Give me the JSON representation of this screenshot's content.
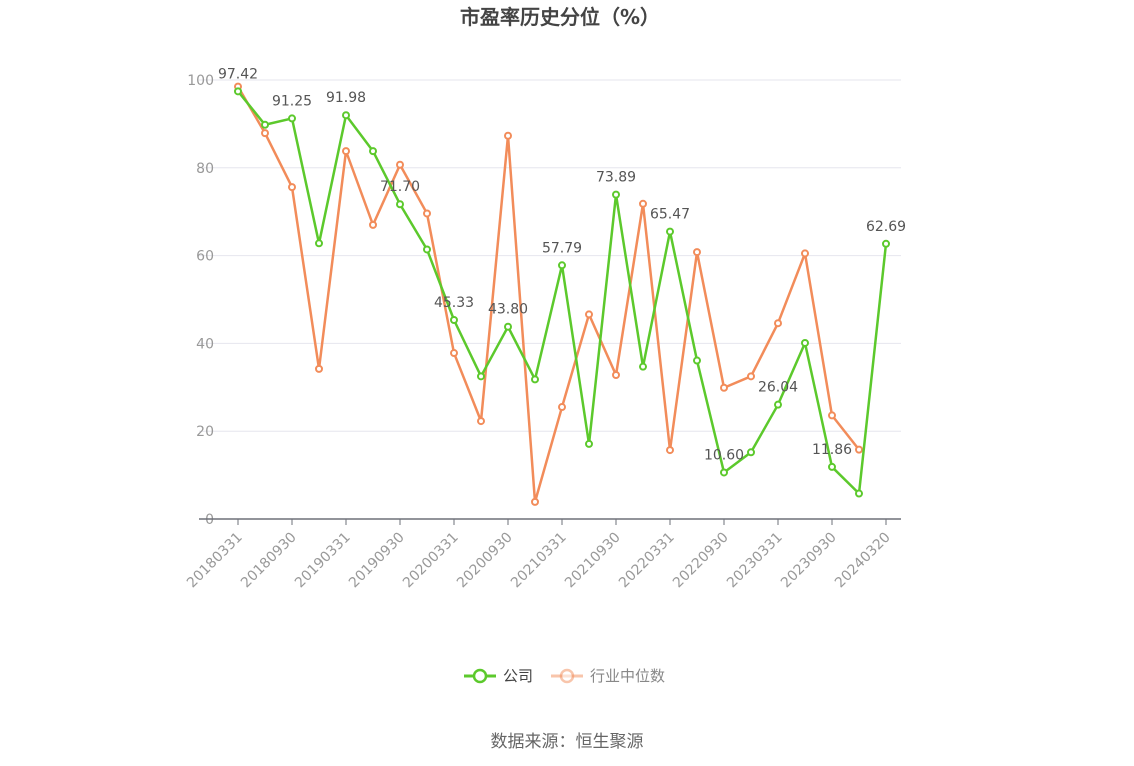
{
  "chart_data": {
    "type": "line",
    "title": "市盈率历史分位（%）",
    "source": "数据来源：恒生聚源",
    "ylim": [
      0,
      100
    ],
    "yticks": [
      "0",
      "20",
      "40",
      "60",
      "80",
      "100"
    ],
    "xticks": [
      "20180331",
      "20180930",
      "20190331",
      "20190930",
      "20200331",
      "20200930",
      "20210331",
      "20210930",
      "20220331",
      "20220930",
      "20230331",
      "20230930",
      "20240320"
    ],
    "grid": true,
    "legend_position": "bottom",
    "series": [
      {
        "name": "公司",
        "color": "#5cc92c",
        "values": [
          97.42,
          89.8,
          91.25,
          62.8,
          91.98,
          83.8,
          71.7,
          61.4,
          45.33,
          32.5,
          43.8,
          31.8,
          57.79,
          17.1,
          73.89,
          34.7,
          65.47,
          36.1,
          10.6,
          15.2,
          26.04,
          40.1,
          11.86,
          5.8,
          62.69
        ],
        "labels": [
          "97.42",
          "",
          "91.25",
          "",
          "91.98",
          "",
          "71.70",
          "",
          "45.33",
          "",
          "43.80",
          "",
          "57.79",
          "",
          "73.89",
          "",
          "65.47",
          "",
          "10.60",
          "",
          "26.04",
          "",
          "11.86",
          "",
          "62.69"
        ]
      },
      {
        "name": "行业中位数",
        "color": "#f28c5a",
        "values": [
          98.5,
          87.9,
          75.6,
          34.2,
          83.8,
          67.0,
          80.7,
          69.6,
          37.8,
          22.3,
          87.3,
          3.9,
          25.5,
          46.6,
          32.8,
          71.8,
          15.7,
          60.8,
          29.9,
          32.5,
          44.6,
          60.5,
          23.6,
          15.8
        ]
      }
    ]
  }
}
